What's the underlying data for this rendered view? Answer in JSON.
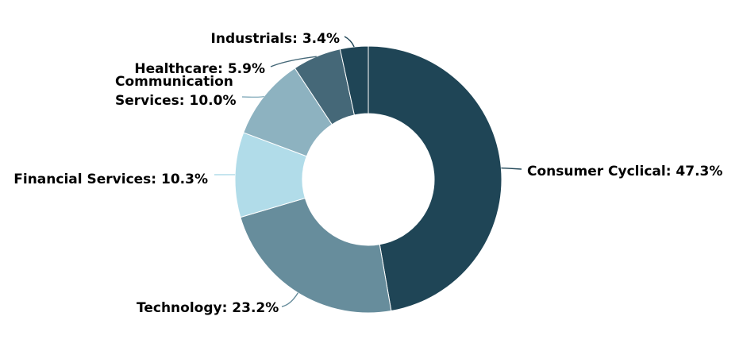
{
  "chart_data": {
    "type": "pie",
    "donut": true,
    "categories": [
      "Consumer Cyclical",
      "Technology",
      "Financial Services",
      "Communication Services",
      "Healthcare",
      "Industrials"
    ],
    "values": [
      47.3,
      23.2,
      10.3,
      10.0,
      5.9,
      3.4
    ],
    "labels": [
      [
        "Consumer Cyclical: 47.3%"
      ],
      [
        "Technology: 23.2%"
      ],
      [
        "Financial Services: 10.3%"
      ],
      [
        "Communication",
        "Services: 10.0%"
      ],
      [
        "Healthcare: 5.9%"
      ],
      [
        "Industrials: 3.4%"
      ]
    ],
    "colors": [
      "#1f4556",
      "#678d9c",
      "#b1dce9",
      "#8db2c0",
      "#456878",
      "#1f4556"
    ],
    "legend": "none",
    "title": "",
    "start_angle": "12 o'clock",
    "direction": "clockwise"
  }
}
